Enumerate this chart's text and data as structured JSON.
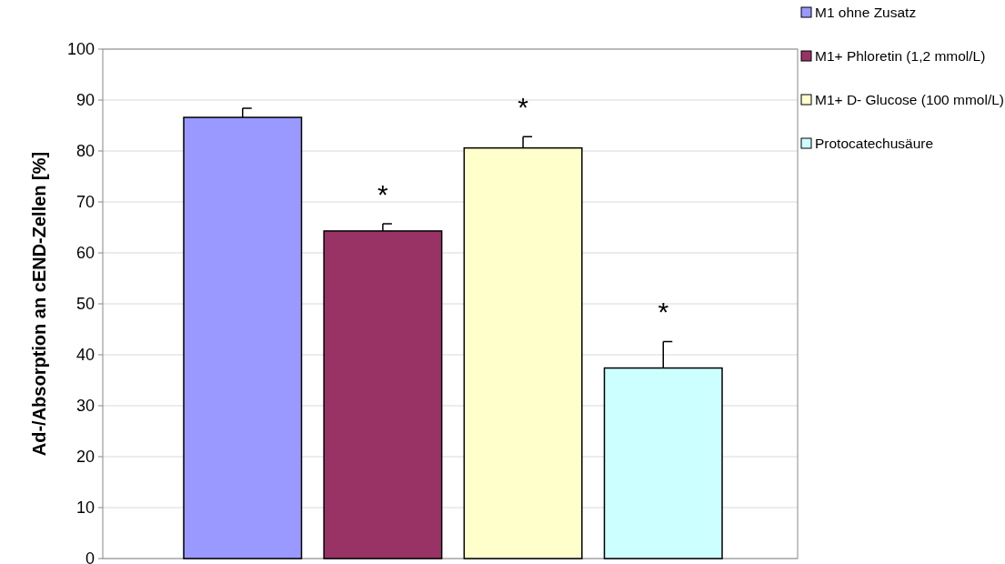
{
  "chart_data": {
    "type": "bar",
    "ylabel": "Ad-/Absorption an cEND-Zellen [%]",
    "categories": [
      null,
      null,
      null,
      null
    ],
    "series": [
      {
        "name": "M1 ohne Zusatz",
        "color": "#9999ff",
        "values": [
          86.6,
          null,
          null,
          null
        ],
        "errors": [
          1.8,
          null,
          null,
          null
        ]
      },
      {
        "name": "M1+ Phloretin (1,2 mmol/L)",
        "color": "#993366",
        "values": [
          null,
          64.3,
          null,
          null
        ],
        "errors": [
          null,
          1.4,
          null,
          null
        ],
        "value_labels": [
          null,
          "*",
          null,
          null
        ]
      },
      {
        "name": "M1+ D- Glucose (100 mmol/L)",
        "color": "#ffffcc",
        "values": [
          null,
          null,
          80.6,
          null
        ],
        "errors": [
          null,
          null,
          2.2,
          null
        ],
        "value_labels": [
          null,
          null,
          "*",
          null
        ]
      },
      {
        "name": "Protocatechusäure",
        "color": "#ccffff",
        "values": [
          null,
          null,
          null,
          37.4
        ],
        "errors": [
          null,
          null,
          null,
          5.2
        ],
        "value_labels": [
          null,
          null,
          null,
          "*"
        ]
      }
    ],
    "ylim": [
      0,
      100
    ],
    "yticks": [
      0,
      10,
      20,
      30,
      40,
      50,
      60,
      70,
      80,
      90,
      100
    ],
    "grid": "y",
    "legend": "top right"
  }
}
